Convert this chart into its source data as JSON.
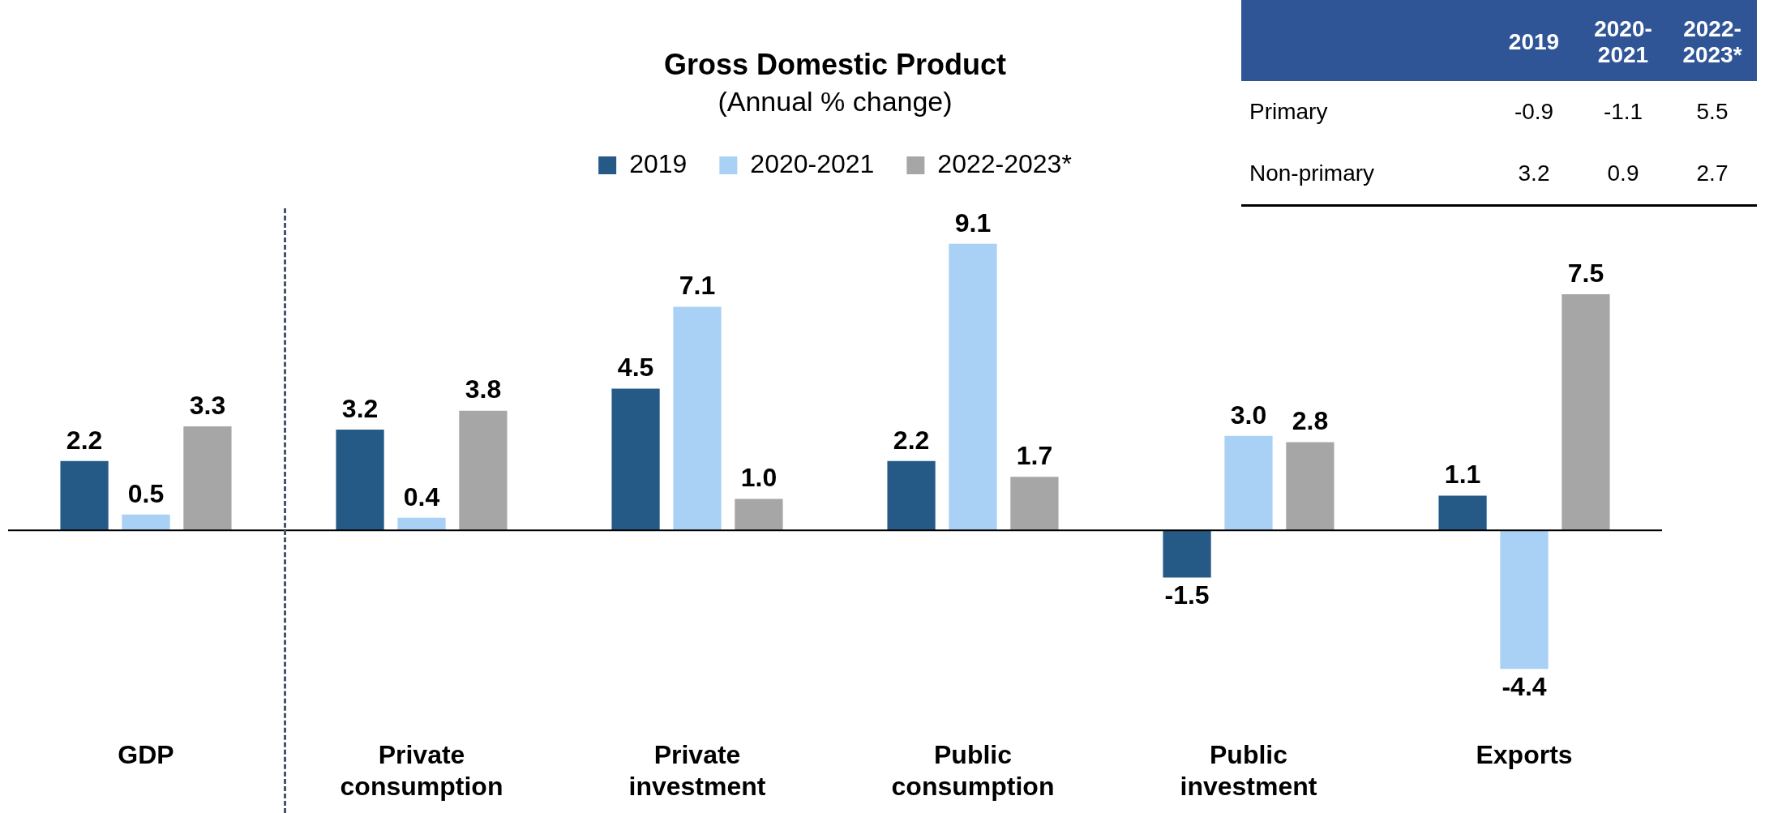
{
  "chart_data": [
    {
      "type": "bar",
      "title": "Gross Domestic Product",
      "subtitle": "(Annual % change)",
      "categories": [
        "GDP",
        "Private consumption",
        "Private investment",
        "Public consumption",
        "Public investment",
        "Exports"
      ],
      "series": [
        {
          "name": "2019",
          "color": "#255a87",
          "values": [
            2.2,
            3.2,
            4.5,
            2.2,
            -1.5,
            1.1
          ],
          "value_labels": [
            "2.2",
            "3.2",
            "4.5",
            "2.2",
            "-1.5",
            "1.1"
          ]
        },
        {
          "name": "2020-2021",
          "color": "#a9d0f5",
          "values": [
            0.5,
            0.4,
            7.1,
            9.1,
            3.0,
            -4.4
          ],
          "value_labels": [
            "0.5",
            "0.4",
            "7.1",
            "9.1",
            "3.0",
            "-4.4"
          ]
        },
        {
          "name": "2022-2023*",
          "color": "#a6a6a6",
          "values": [
            3.3,
            3.8,
            1.0,
            1.7,
            2.8,
            7.5
          ],
          "value_labels": [
            "3.3",
            "3.8",
            "1.0",
            "1.7",
            "2.8",
            "7.5"
          ]
        }
      ],
      "legend": "top"
    },
    {
      "type": "other",
      "categories": [
        "2019",
        "2020-2021",
        "2022-2023*"
      ],
      "series": [
        {
          "name": "Primary",
          "values": [
            -0.9,
            -1.1,
            5.5
          ]
        },
        {
          "name": "Non-primary",
          "values": [
            3.2,
            0.9,
            2.7
          ]
        }
      ],
      "data_labels": true
    }
  ]
}
